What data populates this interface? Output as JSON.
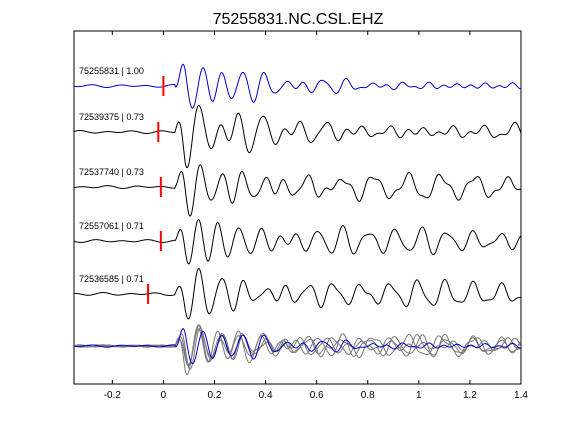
{
  "chart_data": {
    "type": "line",
    "title": "75255831.NC.CSL.EHZ",
    "xlabel": "",
    "ylabel": "",
    "xlim": [
      -0.35,
      1.4
    ],
    "x_ticks": [
      -0.2,
      0,
      0.2,
      0.4,
      0.6,
      0.8,
      1,
      1.2,
      1.4
    ],
    "x_tick_labels": [
      "-0.2",
      "0",
      "0.2",
      "0.4",
      "0.6",
      "0.8",
      "1",
      "1.2",
      "1.4"
    ],
    "grid": false,
    "legend": "none",
    "colors": {
      "master": "#0000cc",
      "trace": "#000000",
      "overlay": "#777777",
      "pick": "#ff0000",
      "axis": "#000000"
    },
    "series": [
      {
        "label": "75255831 | 1.00",
        "event_id": "75255831",
        "correlation": 1.0,
        "pick_time": 0.0,
        "master": true
      },
      {
        "label": "72539375 | 0.73",
        "event_id": "72539375",
        "correlation": 0.73,
        "pick_time": -0.02,
        "master": false
      },
      {
        "label": "72537740 | 0.73",
        "event_id": "72537740",
        "correlation": 0.73,
        "pick_time": -0.01,
        "master": false
      },
      {
        "label": "72557061 | 0.71",
        "event_id": "72557061",
        "correlation": 0.71,
        "pick_time": -0.01,
        "master": false
      },
      {
        "label": "72536585 | 0.71",
        "event_id": "72536585",
        "correlation": 0.71,
        "pick_time": -0.06,
        "master": false
      }
    ]
  }
}
